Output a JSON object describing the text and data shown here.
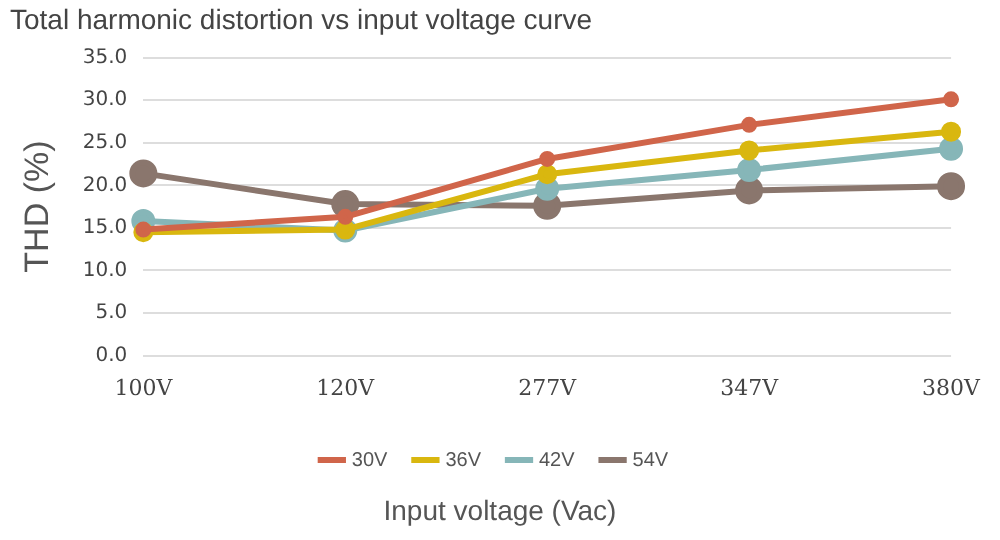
{
  "chart_data": {
    "type": "line",
    "title": "Total harmonic distortion vs input voltage curve",
    "xlabel": "Input voltage (Vac)",
    "ylabel": "THD (%)",
    "categories": [
      "100V",
      "120V",
      "277V",
      "347V",
      "380V"
    ],
    "series": [
      {
        "name": "30V",
        "color": "#d0654a",
        "values": [
          14.8,
          16.3,
          23.1,
          27.1,
          30.1
        ]
      },
      {
        "name": "36V",
        "color": "#d9b70f",
        "values": [
          14.5,
          14.8,
          21.3,
          24.1,
          26.3
        ]
      },
      {
        "name": "42V",
        "color": "#86b6b8",
        "values": [
          15.8,
          14.7,
          19.6,
          21.8,
          24.3
        ]
      },
      {
        "name": "54V",
        "color": "#8a766d",
        "values": [
          21.4,
          17.8,
          17.6,
          19.4,
          19.9
        ]
      }
    ],
    "ylim": [
      0,
      35
    ],
    "yticks": [
      {
        "value": 0,
        "label": "0.0"
      },
      {
        "value": 5,
        "label": "5.0"
      },
      {
        "value": 10,
        "label": "10.0"
      },
      {
        "value": 15,
        "label": "15.0"
      },
      {
        "value": 20,
        "label": "20.0"
      },
      {
        "value": 25,
        "label": "25.0"
      },
      {
        "value": 30,
        "label": "30.0"
      },
      {
        "value": 35,
        "label": "35.0"
      }
    ],
    "grid": "y",
    "legend": "bottom",
    "marker": "circle",
    "line_style": "solid"
  }
}
